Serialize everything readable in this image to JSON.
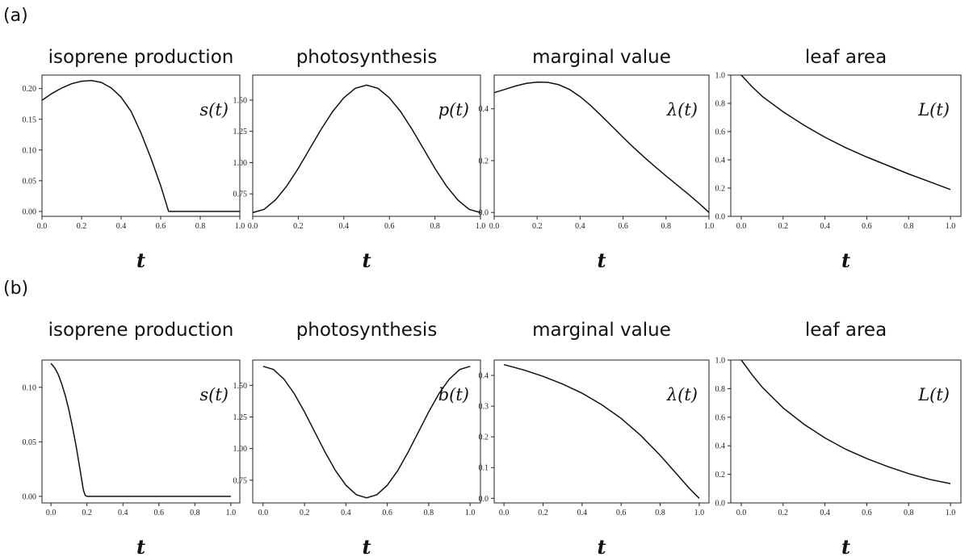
{
  "row_labels": [
    "(a)",
    "(b)"
  ],
  "chart_data": [
    {
      "row": 0,
      "type": "line",
      "title": "isoprene production",
      "annotation": "s(t)",
      "xlabel": "t",
      "xlim": [
        0,
        1
      ],
      "ylim": [
        -0.008,
        0.222
      ],
      "xticks": [
        "0.0",
        "0.2",
        "0.4",
        "0.6",
        "0.8",
        "1.0"
      ],
      "yticks": [
        "0.00",
        "0.05",
        "0.10",
        "0.15",
        "0.20"
      ],
      "x": [
        0,
        0.05,
        0.1,
        0.15,
        0.2,
        0.25,
        0.3,
        0.35,
        0.4,
        0.45,
        0.5,
        0.55,
        0.6,
        0.64,
        0.7,
        0.8,
        0.9,
        1.0
      ],
      "y": [
        0.181,
        0.192,
        0.201,
        0.208,
        0.212,
        0.213,
        0.21,
        0.201,
        0.186,
        0.163,
        0.128,
        0.087,
        0.042,
        0.0,
        0.0,
        0.0,
        0.0,
        0.0
      ]
    },
    {
      "row": 0,
      "type": "line",
      "title": "photosynthesis",
      "annotation": "p(t)",
      "xlabel": "t",
      "xlim": [
        0,
        1
      ],
      "ylim": [
        0.57,
        1.7
      ],
      "xticks": [
        "0.0",
        "0.2",
        "0.4",
        "0.6",
        "0.8",
        "1.0"
      ],
      "yticks": [
        "0.75",
        "1.00",
        "1.25",
        "1.50"
      ],
      "x": [
        0,
        0.05,
        0.1,
        0.15,
        0.2,
        0.25,
        0.3,
        0.35,
        0.4,
        0.45,
        0.5,
        0.55,
        0.6,
        0.65,
        0.7,
        0.75,
        0.8,
        0.85,
        0.9,
        0.95,
        1.0
      ],
      "y": [
        0.6,
        0.626,
        0.702,
        0.814,
        0.954,
        1.11,
        1.265,
        1.406,
        1.518,
        1.594,
        1.62,
        1.594,
        1.518,
        1.406,
        1.265,
        1.11,
        0.954,
        0.814,
        0.702,
        0.626,
        0.6
      ]
    },
    {
      "row": 0,
      "type": "line",
      "title": "marginal value",
      "annotation": "λ(t)",
      "xlabel": "t",
      "xlim": [
        0,
        1
      ],
      "ylim": [
        -0.015,
        0.53
      ],
      "xticks": [
        "0.0",
        "0.2",
        "0.4",
        "0.6",
        "0.8",
        "1.0"
      ],
      "yticks": [
        "0.0",
        "0.2",
        "0.4"
      ],
      "x": [
        0,
        0.05,
        0.1,
        0.15,
        0.2,
        0.25,
        0.3,
        0.35,
        0.4,
        0.45,
        0.5,
        0.55,
        0.6,
        0.65,
        0.7,
        0.75,
        0.8,
        0.85,
        0.9,
        0.95,
        1.0
      ],
      "y": [
        0.462,
        0.475,
        0.488,
        0.498,
        0.503,
        0.502,
        0.493,
        0.475,
        0.447,
        0.412,
        0.372,
        0.331,
        0.29,
        0.25,
        0.212,
        0.176,
        0.141,
        0.107,
        0.073,
        0.038,
        0.0
      ]
    },
    {
      "row": 0,
      "type": "line",
      "title": "leaf area",
      "annotation": "L(t)",
      "xlabel": "t",
      "xlim": [
        -0.05,
        1.05
      ],
      "ylim": [
        0.0,
        1.0
      ],
      "xticks": [
        "0.0",
        "0.2",
        "0.4",
        "0.6",
        "0.8",
        "1.0"
      ],
      "yticks": [
        "0.0",
        "0.2",
        "0.4",
        "0.6",
        "0.8",
        "1.0"
      ],
      "x": [
        0,
        0.05,
        0.1,
        0.2,
        0.3,
        0.4,
        0.5,
        0.6,
        0.7,
        0.8,
        0.9,
        1.0
      ],
      "y": [
        1.0,
        0.92,
        0.85,
        0.74,
        0.645,
        0.56,
        0.485,
        0.42,
        0.36,
        0.3,
        0.245,
        0.19
      ]
    },
    {
      "row": 1,
      "type": "line",
      "title": "isoprene production",
      "annotation": "s(t)",
      "xlabel": "t",
      "xlim": [
        -0.05,
        1.05
      ],
      "ylim": [
        -0.006,
        0.125
      ],
      "xticks": [
        "0.0",
        "0.2",
        "0.4",
        "0.6",
        "0.8",
        "1.0"
      ],
      "yticks": [
        "0.00",
        "0.05",
        "0.10"
      ],
      "x": [
        0,
        0.02,
        0.04,
        0.06,
        0.08,
        0.1,
        0.12,
        0.14,
        0.16,
        0.18,
        0.19,
        0.2,
        0.4,
        0.6,
        0.8,
        1.0
      ],
      "y": [
        0.122,
        0.118,
        0.112,
        0.103,
        0.092,
        0.079,
        0.063,
        0.046,
        0.026,
        0.006,
        0.001,
        0.0,
        0.0,
        0.0,
        0.0,
        0.0
      ]
    },
    {
      "row": 1,
      "type": "line",
      "title": "photosynthesis",
      "annotation": "b(t)",
      "xlabel": "t",
      "xlim": [
        -0.05,
        1.05
      ],
      "ylim": [
        0.57,
        1.7
      ],
      "xticks": [
        "0.0",
        "0.2",
        "0.4",
        "0.6",
        "0.8",
        "1.0"
      ],
      "yticks": [
        "0.75",
        "1.00",
        "1.25",
        "1.50"
      ],
      "x": [
        0,
        0.05,
        0.1,
        0.15,
        0.2,
        0.25,
        0.3,
        0.35,
        0.4,
        0.45,
        0.5,
        0.55,
        0.6,
        0.65,
        0.7,
        0.75,
        0.8,
        0.85,
        0.9,
        0.95,
        1.0
      ],
      "y": [
        1.65,
        1.625,
        1.55,
        1.435,
        1.29,
        1.13,
        0.97,
        0.825,
        0.71,
        0.635,
        0.61,
        0.635,
        0.71,
        0.825,
        0.97,
        1.13,
        1.29,
        1.435,
        1.55,
        1.625,
        1.65
      ]
    },
    {
      "row": 1,
      "type": "line",
      "title": "marginal value",
      "annotation": "λ(t)",
      "xlabel": "t",
      "xlim": [
        -0.05,
        1.05
      ],
      "ylim": [
        -0.015,
        0.45
      ],
      "xticks": [
        "0.0",
        "0.2",
        "0.4",
        "0.6",
        "0.8",
        "1.0"
      ],
      "yticks": [
        "0.0",
        "0.1",
        "0.2",
        "0.3",
        "0.4"
      ],
      "x": [
        0,
        0.1,
        0.2,
        0.3,
        0.4,
        0.5,
        0.6,
        0.7,
        0.8,
        0.9,
        0.95,
        1.0
      ],
      "y": [
        0.435,
        0.418,
        0.397,
        0.372,
        0.342,
        0.305,
        0.26,
        0.205,
        0.14,
        0.068,
        0.032,
        0.0
      ]
    },
    {
      "row": 1,
      "type": "line",
      "title": "leaf area",
      "annotation": "L(t)",
      "xlabel": "t",
      "xlim": [
        -0.05,
        1.05
      ],
      "ylim": [
        0.0,
        1.0
      ],
      "xticks": [
        "0.0",
        "0.2",
        "0.4",
        "0.6",
        "0.8",
        "1.0"
      ],
      "yticks": [
        "0.0",
        "0.2",
        "0.4",
        "0.6",
        "0.8",
        "1.0"
      ],
      "x": [
        0,
        0.05,
        0.1,
        0.2,
        0.3,
        0.4,
        0.5,
        0.6,
        0.7,
        0.8,
        0.9,
        1.0
      ],
      "y": [
        1.0,
        0.9,
        0.81,
        0.665,
        0.55,
        0.455,
        0.375,
        0.31,
        0.255,
        0.205,
        0.165,
        0.135
      ]
    }
  ]
}
